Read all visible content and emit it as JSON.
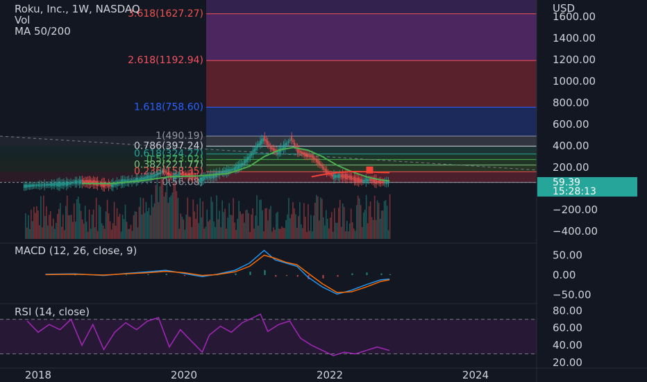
{
  "header": {
    "symbol_line": "Roku, Inc., 1W, NASDAQ",
    "vol_label": "Vol",
    "ma_label": "MA 50/200"
  },
  "currency": "USD",
  "price_tag": {
    "price": "59.39",
    "countdown": "15:28:13"
  },
  "colors": {
    "background": "#131722",
    "up": "#26a69a",
    "down": "#ef5350",
    "ma50": "#f44336",
    "ma200": "#4caf50",
    "macd": "#2196f3",
    "signal": "#ff6d00",
    "rsi": "#9c27b0",
    "price_tag": "#26a69a"
  },
  "chart_data": [
    {
      "type": "line",
      "name": "price",
      "scale": "symmetric-log",
      "x_ticks": [
        "2018",
        "2020",
        "2022",
        "2024"
      ],
      "y_ticks": [
        "1600.00",
        "1400.00",
        "1200.00",
        "1000.00",
        "800.00",
        "600.00",
        "400.00",
        "200.00",
        "0.00",
        "−200.00",
        "−400.00"
      ],
      "y_tick_values": [
        1600,
        1400,
        1200,
        1000,
        800,
        600,
        400,
        200,
        0,
        -200,
        -400
      ],
      "fib_levels": [
        {
          "label": "3.618(1627.27)",
          "value": 1627.27,
          "color": "#ef5350"
        },
        {
          "label": "2.618(1192.94)",
          "value": 1192.94,
          "color": "#f7525f"
        },
        {
          "label": "1.618(758.60)",
          "value": 758.6,
          "color": "#2962ff"
        },
        {
          "label": "1(490.19)",
          "value": 490.19,
          "color": "#9598a1"
        },
        {
          "label": "0.786(397.24)",
          "value": 397.24,
          "color": "#d1d4dc"
        },
        {
          "label": "0.618(324.27)",
          "value": 324.27,
          "color": "#26a69a"
        },
        {
          "label": "0.5(273.02)",
          "value": 273.02,
          "color": "#4caf50"
        },
        {
          "label": "0.382(221.77)",
          "value": 221.77,
          "color": "#81c784"
        },
        {
          "label": "0.236(158.35)",
          "value": 158.35,
          "color": "#ef5350"
        },
        {
          "label": "0(56.08)",
          "value": 56.08,
          "color": "#9598a1"
        }
      ],
      "price_points": [
        [
          2017.8,
          19
        ],
        [
          2017.95,
          28
        ],
        [
          2018.1,
          33
        ],
        [
          2018.25,
          38
        ],
        [
          2018.4,
          44
        ],
        [
          2018.5,
          58
        ],
        [
          2018.6,
          60
        ],
        [
          2018.75,
          55
        ],
        [
          2018.9,
          33
        ],
        [
          2019.0,
          30
        ],
        [
          2019.15,
          63
        ],
        [
          2019.3,
          72
        ],
        [
          2019.45,
          96
        ],
        [
          2019.55,
          110
        ],
        [
          2019.65,
          140
        ],
        [
          2019.72,
          170
        ],
        [
          2019.78,
          130
        ],
        [
          2019.85,
          110
        ],
        [
          2019.95,
          135
        ],
        [
          2020.05,
          125
        ],
        [
          2020.15,
          112
        ],
        [
          2020.2,
          72
        ],
        [
          2020.3,
          108
        ],
        [
          2020.4,
          118
        ],
        [
          2020.5,
          150
        ],
        [
          2020.6,
          165
        ],
        [
          2020.7,
          190
        ],
        [
          2020.8,
          230
        ],
        [
          2020.9,
          300
        ],
        [
          2021.0,
          400
        ],
        [
          2021.1,
          470
        ],
        [
          2021.18,
          385
        ],
        [
          2021.28,
          340
        ],
        [
          2021.38,
          400
        ],
        [
          2021.47,
          470
        ],
        [
          2021.55,
          360
        ],
        [
          2021.65,
          320
        ],
        [
          2021.75,
          300
        ],
        [
          2021.85,
          240
        ],
        [
          2021.95,
          160
        ],
        [
          2022.05,
          112
        ],
        [
          2022.15,
          118
        ],
        [
          2022.25,
          110
        ],
        [
          2022.35,
          82
        ],
        [
          2022.45,
          70
        ],
        [
          2022.55,
          82
        ],
        [
          2022.65,
          62
        ],
        [
          2022.75,
          58
        ],
        [
          2022.82,
          59.39
        ]
      ],
      "ma50_points": [
        [
          2018.6,
          45
        ],
        [
          2019.0,
          45
        ],
        [
          2019.4,
          70
        ],
        [
          2019.8,
          110
        ],
        [
          2020.2,
          118
        ],
        [
          2020.6,
          140
        ],
        [
          2020.9,
          210
        ],
        [
          2021.1,
          300
        ],
        [
          2021.3,
          360
        ],
        [
          2021.5,
          385
        ],
        [
          2021.7,
          360
        ],
        [
          2021.9,
          300
        ],
        [
          2022.1,
          220
        ],
        [
          2022.3,
          160
        ],
        [
          2022.5,
          110
        ],
        [
          2022.7,
          80
        ],
        [
          2022.82,
          70
        ]
      ],
      "ma200_points": [
        [
          2021.75,
          110
        ],
        [
          2021.9,
          130
        ],
        [
          2022.1,
          150
        ],
        [
          2022.3,
          160
        ],
        [
          2022.5,
          158
        ],
        [
          2022.7,
          152
        ],
        [
          2022.82,
          150
        ]
      ]
    },
    {
      "type": "line",
      "name": "MACD",
      "title": "MACD (12, 26, close, 9)",
      "y_ticks": [
        "50.00",
        "0.00",
        "−50.00"
      ],
      "y_tick_values": [
        50,
        0,
        -50
      ],
      "macd_points": [
        [
          2018.1,
          2
        ],
        [
          2018.5,
          3
        ],
        [
          2018.9,
          -1
        ],
        [
          2019.2,
          4
        ],
        [
          2019.5,
          8
        ],
        [
          2019.75,
          12
        ],
        [
          2020.0,
          4
        ],
        [
          2020.25,
          -4
        ],
        [
          2020.45,
          2
        ],
        [
          2020.7,
          12
        ],
        [
          2020.9,
          30
        ],
        [
          2021.1,
          62
        ],
        [
          2021.25,
          38
        ],
        [
          2021.4,
          30
        ],
        [
          2021.55,
          22
        ],
        [
          2021.7,
          -5
        ],
        [
          2021.9,
          -30
        ],
        [
          2022.1,
          -48
        ],
        [
          2022.3,
          -38
        ],
        [
          2022.5,
          -24
        ],
        [
          2022.7,
          -12
        ],
        [
          2022.82,
          -10
        ]
      ],
      "signal_points": [
        [
          2018.1,
          1
        ],
        [
          2018.5,
          2
        ],
        [
          2018.9,
          0
        ],
        [
          2019.2,
          3
        ],
        [
          2019.5,
          6
        ],
        [
          2019.75,
          9
        ],
        [
          2020.0,
          6
        ],
        [
          2020.25,
          -1
        ],
        [
          2020.45,
          1
        ],
        [
          2020.7,
          8
        ],
        [
          2020.9,
          22
        ],
        [
          2021.1,
          50
        ],
        [
          2021.25,
          42
        ],
        [
          2021.4,
          32
        ],
        [
          2021.55,
          26
        ],
        [
          2021.7,
          5
        ],
        [
          2021.9,
          -22
        ],
        [
          2022.1,
          -44
        ],
        [
          2022.3,
          -42
        ],
        [
          2022.5,
          -30
        ],
        [
          2022.7,
          -16
        ],
        [
          2022.82,
          -12
        ]
      ]
    },
    {
      "type": "line",
      "name": "RSI",
      "title": "RSI (14, close)",
      "y_ticks": [
        "80.00",
        "60.00",
        "40.00",
        "20.00"
      ],
      "y_tick_values": [
        80,
        60,
        40,
        20
      ],
      "bands": [
        70,
        30
      ],
      "rsi_points": [
        [
          2017.85,
          68
        ],
        [
          2018.0,
          55
        ],
        [
          2018.15,
          64
        ],
        [
          2018.3,
          58
        ],
        [
          2018.45,
          70
        ],
        [
          2018.6,
          40
        ],
        [
          2018.75,
          64
        ],
        [
          2018.9,
          35
        ],
        [
          2019.05,
          55
        ],
        [
          2019.2,
          66
        ],
        [
          2019.35,
          58
        ],
        [
          2019.5,
          68
        ],
        [
          2019.65,
          72
        ],
        [
          2019.8,
          38
        ],
        [
          2019.95,
          58
        ],
        [
          2020.1,
          45
        ],
        [
          2020.25,
          32
        ],
        [
          2020.35,
          52
        ],
        [
          2020.5,
          62
        ],
        [
          2020.65,
          55
        ],
        [
          2020.8,
          66
        ],
        [
          2020.95,
          72
        ],
        [
          2021.05,
          76
        ],
        [
          2021.15,
          56
        ],
        [
          2021.3,
          64
        ],
        [
          2021.45,
          68
        ],
        [
          2021.6,
          48
        ],
        [
          2021.75,
          40
        ],
        [
          2021.9,
          34
        ],
        [
          2022.05,
          28
        ],
        [
          2022.2,
          32
        ],
        [
          2022.35,
          30
        ],
        [
          2022.5,
          34
        ],
        [
          2022.65,
          38
        ],
        [
          2022.82,
          34
        ]
      ]
    }
  ]
}
